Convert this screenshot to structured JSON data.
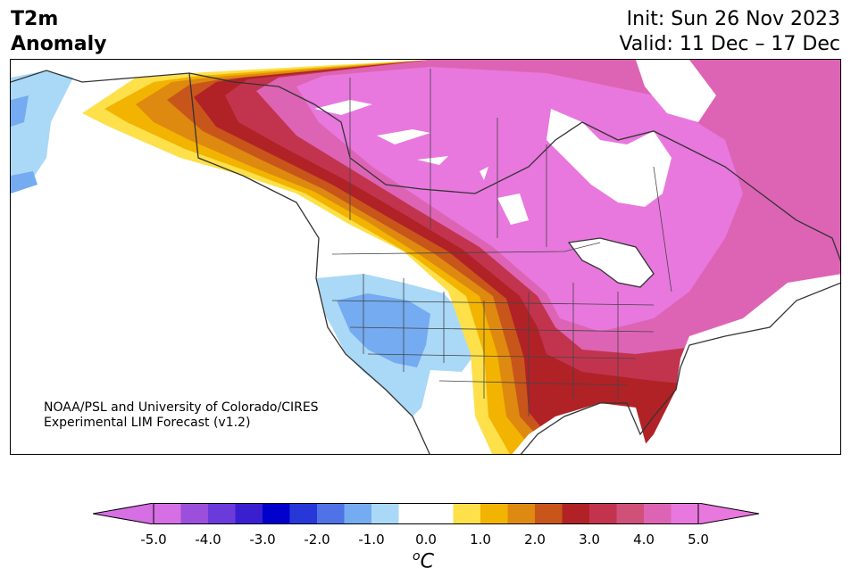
{
  "title": {
    "left_line1": "T2m",
    "left_line2": "Anomaly",
    "init": "Init: Sun 26 Nov 2023",
    "valid": "Valid: 11 Dec – 17 Dec"
  },
  "credit": {
    "line1": "NOAA/PSL and University of Colorado/CIRES",
    "line2": "Experimental LIM Forecast (v1.2)"
  },
  "colorbar": {
    "units_sup": "o",
    "units": "C",
    "ticks": [
      "-5.0",
      "-4.0",
      "-3.0",
      "-2.0",
      "-1.0",
      "0.0",
      "1.0",
      "2.0",
      "3.0",
      "4.0",
      "5.0"
    ],
    "colors": [
      "#d56fe3",
      "#9b4fdb",
      "#6a3adb",
      "#3a1fd0",
      "#0000cd",
      "#2838d8",
      "#4f72e6",
      "#75abf0",
      "#aad8f7",
      "#ffffff",
      "#ffffff",
      "#fde04a",
      "#f2b400",
      "#de8a10",
      "#c8561a",
      "#b02226",
      "#c2344e",
      "#cf5078",
      "#dd64b4",
      "#e878dd"
    ],
    "under_color": "#d56fe3",
    "over_color": "#e878dd"
  },
  "map": {
    "region": "North America",
    "colors": {
      "ocean": "#ffffff",
      "coast": "#333333",
      "warm_max": "#e878dd",
      "warm_4": "#dd64b4",
      "warm_3": "#c2344e",
      "warm_2": "#c8561a",
      "warm_1": "#de8a10",
      "warm_05": "#f2b400",
      "warm_0": "#fde04a",
      "cool_1": "#aad8f7",
      "cool_2": "#75abf0"
    }
  }
}
